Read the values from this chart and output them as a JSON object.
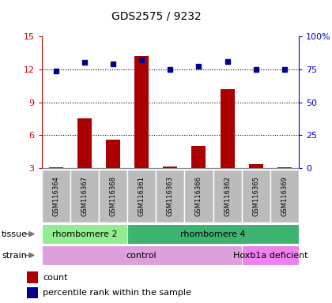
{
  "title": "GDS2575 / 9232",
  "samples": [
    "GSM116364",
    "GSM116367",
    "GSM116368",
    "GSM116361",
    "GSM116363",
    "GSM116366",
    "GSM116362",
    "GSM116365",
    "GSM116369"
  ],
  "count_values": [
    3.1,
    7.5,
    5.6,
    13.2,
    3.15,
    5.0,
    10.2,
    3.4,
    3.1
  ],
  "percentile_values": [
    74,
    80,
    79,
    82,
    75,
    77,
    81,
    75,
    75
  ],
  "ylim_left": [
    3,
    15
  ],
  "ylim_right": [
    0,
    100
  ],
  "yticks_left": [
    3,
    6,
    9,
    12,
    15
  ],
  "yticks_right": [
    0,
    25,
    50,
    75,
    100
  ],
  "tissue_groups": [
    {
      "label": "rhombomere 2",
      "start": 0,
      "end": 3,
      "color": "#90EE90"
    },
    {
      "label": "rhombomere 4",
      "start": 3,
      "end": 9,
      "color": "#3CB371"
    }
  ],
  "strain_groups": [
    {
      "label": "control",
      "start": 0,
      "end": 7,
      "color": "#DDA0DD"
    },
    {
      "label": "Hoxb1a deficient",
      "start": 7,
      "end": 9,
      "color": "#EE82EE"
    }
  ],
  "bar_color": "#AA0000",
  "dot_color": "#00008B",
  "bg_color": "#ffffff",
  "plot_bg": "#ffffff",
  "grid_color": "#888888",
  "tick_color_left": "#CC0000",
  "tick_color_right": "#0000CC",
  "legend_items": [
    "count",
    "percentile rank within the sample"
  ],
  "tissue_label": "tissue",
  "strain_label": "strain",
  "sample_bg": "#BBBBBB"
}
